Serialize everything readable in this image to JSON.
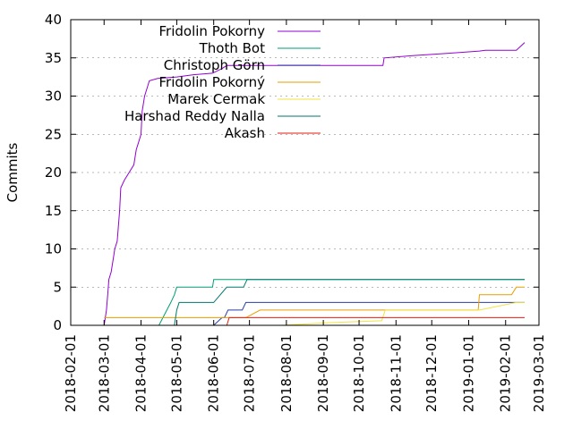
{
  "chart_data": {
    "type": "line",
    "title": "",
    "xlabel": "",
    "ylabel": "Commits",
    "ylim": [
      0,
      40
    ],
    "xlim": [
      "2018-02-01",
      "2019-03-01"
    ],
    "x_ticks": [
      "2018-02-01",
      "2018-03-01",
      "2018-04-01",
      "2018-05-01",
      "2018-06-01",
      "2018-07-01",
      "2018-08-01",
      "2018-09-01",
      "2018-10-01",
      "2018-11-01",
      "2018-12-01",
      "2019-01-01",
      "2019-02-01",
      "2019-03-01"
    ],
    "y_ticks": [
      0,
      5,
      10,
      15,
      20,
      25,
      30,
      35,
      40
    ],
    "grid": "dashed at y ticks",
    "legend_position": "top-left",
    "series": [
      {
        "name": "Fridolin Pokorny",
        "color": "#9400d3",
        "points": [
          [
            "2018-03-01",
            0
          ],
          [
            "2018-03-03",
            2
          ],
          [
            "2018-03-04",
            4
          ],
          [
            "2018-03-05",
            6
          ],
          [
            "2018-03-07",
            7
          ],
          [
            "2018-03-09",
            9
          ],
          [
            "2018-03-10",
            10
          ],
          [
            "2018-03-12",
            11
          ],
          [
            "2018-03-14",
            15
          ],
          [
            "2018-03-15",
            18
          ],
          [
            "2018-03-18",
            19
          ],
          [
            "2018-03-22",
            20
          ],
          [
            "2018-03-26",
            21
          ],
          [
            "2018-03-28",
            23
          ],
          [
            "2018-03-30",
            24
          ],
          [
            "2018-04-01",
            25
          ],
          [
            "2018-04-02",
            28
          ],
          [
            "2018-04-04",
            30
          ],
          [
            "2018-04-06",
            31
          ],
          [
            "2018-04-08",
            32
          ],
          [
            "2018-04-15",
            32.3
          ],
          [
            "2018-05-01",
            32.5
          ],
          [
            "2018-05-15",
            32.8
          ],
          [
            "2018-05-31",
            33
          ],
          [
            "2018-06-08",
            33.6
          ],
          [
            "2018-06-12",
            34
          ],
          [
            "2018-07-01",
            34
          ],
          [
            "2018-08-01",
            34
          ],
          [
            "2018-09-01",
            34
          ],
          [
            "2018-10-01",
            34
          ],
          [
            "2018-10-21",
            34
          ],
          [
            "2018-10-22",
            35
          ],
          [
            "2018-11-15",
            35.3
          ],
          [
            "2018-12-15",
            35.6
          ],
          [
            "2019-01-10",
            35.9
          ],
          [
            "2019-01-15",
            36
          ],
          [
            "2019-02-01",
            36
          ],
          [
            "2019-02-10",
            36
          ],
          [
            "2019-02-17",
            37
          ]
        ]
      },
      {
        "name": "Thoth Bot",
        "color": "#009e73",
        "points": [
          [
            "2018-04-16",
            0
          ],
          [
            "2018-04-26",
            3
          ],
          [
            "2018-04-29",
            4
          ],
          [
            "2018-05-01",
            5
          ],
          [
            "2018-05-20",
            5
          ],
          [
            "2018-05-31",
            5
          ],
          [
            "2018-06-01",
            6
          ],
          [
            "2018-07-01",
            6
          ],
          [
            "2018-09-01",
            6
          ],
          [
            "2018-12-01",
            6
          ],
          [
            "2019-02-17",
            6
          ]
        ]
      },
      {
        "name": "Christoph Görn",
        "color": "#2b3fa6",
        "points": [
          [
            "2018-05-31",
            0
          ],
          [
            "2018-06-01",
            0
          ],
          [
            "2018-06-08",
            1
          ],
          [
            "2018-06-10",
            1
          ],
          [
            "2018-06-13",
            2
          ],
          [
            "2018-06-25",
            2
          ],
          [
            "2018-06-28",
            3
          ],
          [
            "2018-08-01",
            3
          ],
          [
            "2018-10-01",
            3
          ],
          [
            "2018-12-01",
            3
          ],
          [
            "2019-02-17",
            3
          ]
        ]
      },
      {
        "name": "Fridolin Pokorný",
        "color": "#e69f00",
        "points": [
          [
            "2018-03-01",
            1
          ],
          [
            "2018-04-01",
            1
          ],
          [
            "2018-05-01",
            1
          ],
          [
            "2018-06-01",
            1
          ],
          [
            "2018-06-28",
            1
          ],
          [
            "2018-07-10",
            2
          ],
          [
            "2018-08-01",
            2
          ],
          [
            "2018-10-01",
            2
          ],
          [
            "2018-12-01",
            2
          ],
          [
            "2019-01-09",
            2
          ],
          [
            "2019-01-10",
            4
          ],
          [
            "2019-02-06",
            4
          ],
          [
            "2019-02-10",
            5
          ],
          [
            "2019-02-17",
            5
          ]
        ]
      },
      {
        "name": "Marek Cermak",
        "color": "#f0e442",
        "points": [
          [
            "2018-07-28",
            0
          ],
          [
            "2018-09-01",
            0.3
          ],
          [
            "2018-10-01",
            0.5
          ],
          [
            "2018-10-20",
            0.6
          ],
          [
            "2018-10-23",
            2
          ],
          [
            "2018-11-01",
            2
          ],
          [
            "2018-12-01",
            2
          ],
          [
            "2019-01-10",
            2
          ],
          [
            "2019-02-10",
            3
          ],
          [
            "2019-02-17",
            3
          ]
        ]
      },
      {
        "name": "Harshad Reddy Nalla",
        "color": "#007a6e",
        "points": [
          [
            "2018-04-29",
            0
          ],
          [
            "2018-05-01",
            2
          ],
          [
            "2018-05-03",
            3
          ],
          [
            "2018-05-31",
            3
          ],
          [
            "2018-06-01",
            3
          ],
          [
            "2018-06-12",
            5
          ],
          [
            "2018-06-26",
            5
          ],
          [
            "2018-06-29",
            6
          ],
          [
            "2018-12-01",
            6
          ],
          [
            "2019-02-17",
            6
          ]
        ]
      },
      {
        "name": "Akash",
        "color": "#e51e10",
        "points": [
          [
            "2018-06-12",
            0
          ],
          [
            "2018-06-14",
            1
          ],
          [
            "2018-07-01",
            1
          ],
          [
            "2018-09-01",
            1
          ],
          [
            "2018-12-01",
            1
          ],
          [
            "2019-02-17",
            1
          ]
        ]
      }
    ]
  }
}
